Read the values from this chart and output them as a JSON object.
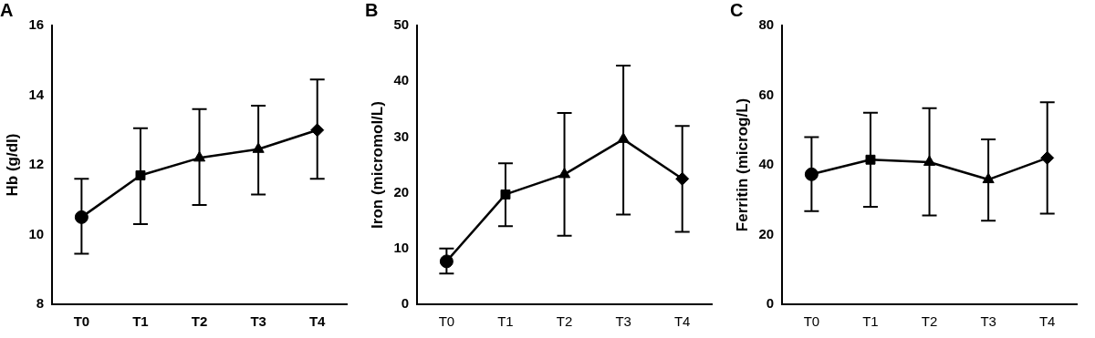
{
  "chart_data": [
    {
      "type": "line",
      "title": "A",
      "ylabel": "Hb (g/dl)",
      "categories": [
        "T0",
        "T1",
        "T2",
        "T3",
        "T4"
      ],
      "ylim": [
        8,
        16
      ],
      "yticks": [
        8,
        10,
        12,
        14,
        16
      ],
      "grid": false,
      "legend": false,
      "series": [
        {
          "color": "#000000",
          "values": [
            10.5,
            11.7,
            12.2,
            12.45,
            13.0
          ],
          "errors": [
            [
              9.45,
              11.6
            ],
            [
              10.3,
              13.05
            ],
            [
              10.85,
              13.6
            ],
            [
              11.15,
              13.7
            ],
            [
              11.6,
              14.45
            ]
          ],
          "marker": "none"
        },
        {
          "type": "scatter",
          "color": "#000000",
          "x": [
            "T0"
          ],
          "values": [
            10.5
          ],
          "marker": "circle"
        },
        {
          "type": "scatter",
          "color": "#000000",
          "x": [
            "T1"
          ],
          "values": [
            11.7
          ],
          "marker": "square"
        },
        {
          "type": "scatter",
          "color": "#000000",
          "x": [
            "T2"
          ],
          "values": [
            12.2
          ],
          "marker": "triangle"
        },
        {
          "type": "scatter",
          "color": "#000000",
          "x": [
            "T3"
          ],
          "values": [
            12.45
          ],
          "marker": "triangle"
        },
        {
          "type": "scatter",
          "color": "#000000",
          "x": [
            "T4"
          ],
          "values": [
            13.0
          ],
          "marker": "diamond"
        }
      ]
    },
    {
      "type": "line",
      "title": "B",
      "ylabel": "Iron (micromol/L)",
      "categories": [
        "T0",
        "T1",
        "T2",
        "T3",
        "T4"
      ],
      "ylim": [
        0,
        50
      ],
      "yticks": [
        0,
        10,
        20,
        30,
        40,
        50
      ],
      "grid": false,
      "legend": false,
      "series": [
        {
          "color": "#000000",
          "values": [
            7.7,
            19.7,
            23.3,
            29.6,
            22.5
          ],
          "errors": [
            [
              5.5,
              10
            ],
            [
              14,
              25.3
            ],
            [
              12.3,
              34.3
            ],
            [
              16.1,
              42.8
            ],
            [
              13,
              32
            ]
          ],
          "marker": "none"
        },
        {
          "type": "scatter",
          "color": "#000000",
          "x": [
            "T0"
          ],
          "values": [
            7.7
          ],
          "marker": "circle"
        },
        {
          "type": "scatter",
          "color": "#000000",
          "x": [
            "T1"
          ],
          "values": [
            19.7
          ],
          "marker": "square"
        },
        {
          "type": "scatter",
          "color": "#000000",
          "x": [
            "T2"
          ],
          "values": [
            23.3
          ],
          "marker": "triangle"
        },
        {
          "type": "scatter",
          "color": "#000000",
          "x": [
            "T3"
          ],
          "values": [
            29.6
          ],
          "marker": "triangle"
        },
        {
          "type": "scatter",
          "color": "#000000",
          "x": [
            "T4"
          ],
          "values": [
            22.5
          ],
          "marker": "diamond"
        }
      ]
    },
    {
      "type": "line",
      "title": "C",
      "ylabel": "Ferritin (microg/L)",
      "categories": [
        "T0",
        "T1",
        "T2",
        "T3",
        "T4"
      ],
      "ylim": [
        0,
        80
      ],
      "yticks": [
        0,
        20,
        40,
        60,
        80
      ],
      "grid": false,
      "legend": false,
      "series": [
        {
          "color": "#000000",
          "values": [
            37.3,
            41.5,
            40.8,
            35.8,
            42
          ],
          "errors": [
            [
              26.7,
              48
            ],
            [
              28,
              55
            ],
            [
              25.5,
              56.3
            ],
            [
              24,
              47.3
            ],
            [
              26,
              58
            ]
          ],
          "marker": "none"
        },
        {
          "type": "scatter",
          "color": "#000000",
          "x": [
            "T0"
          ],
          "values": [
            37.3
          ],
          "marker": "circle"
        },
        {
          "type": "scatter",
          "color": "#000000",
          "x": [
            "T1"
          ],
          "values": [
            41.5
          ],
          "marker": "square"
        },
        {
          "type": "scatter",
          "color": "#000000",
          "x": [
            "T2"
          ],
          "values": [
            40.8
          ],
          "marker": "triangle"
        },
        {
          "type": "scatter",
          "color": "#000000",
          "x": [
            "T3"
          ],
          "values": [
            35.8
          ],
          "marker": "triangle"
        },
        {
          "type": "scatter",
          "color": "#000000",
          "x": [
            "T4"
          ],
          "values": [
            42
          ],
          "marker": "diamond"
        }
      ]
    }
  ]
}
